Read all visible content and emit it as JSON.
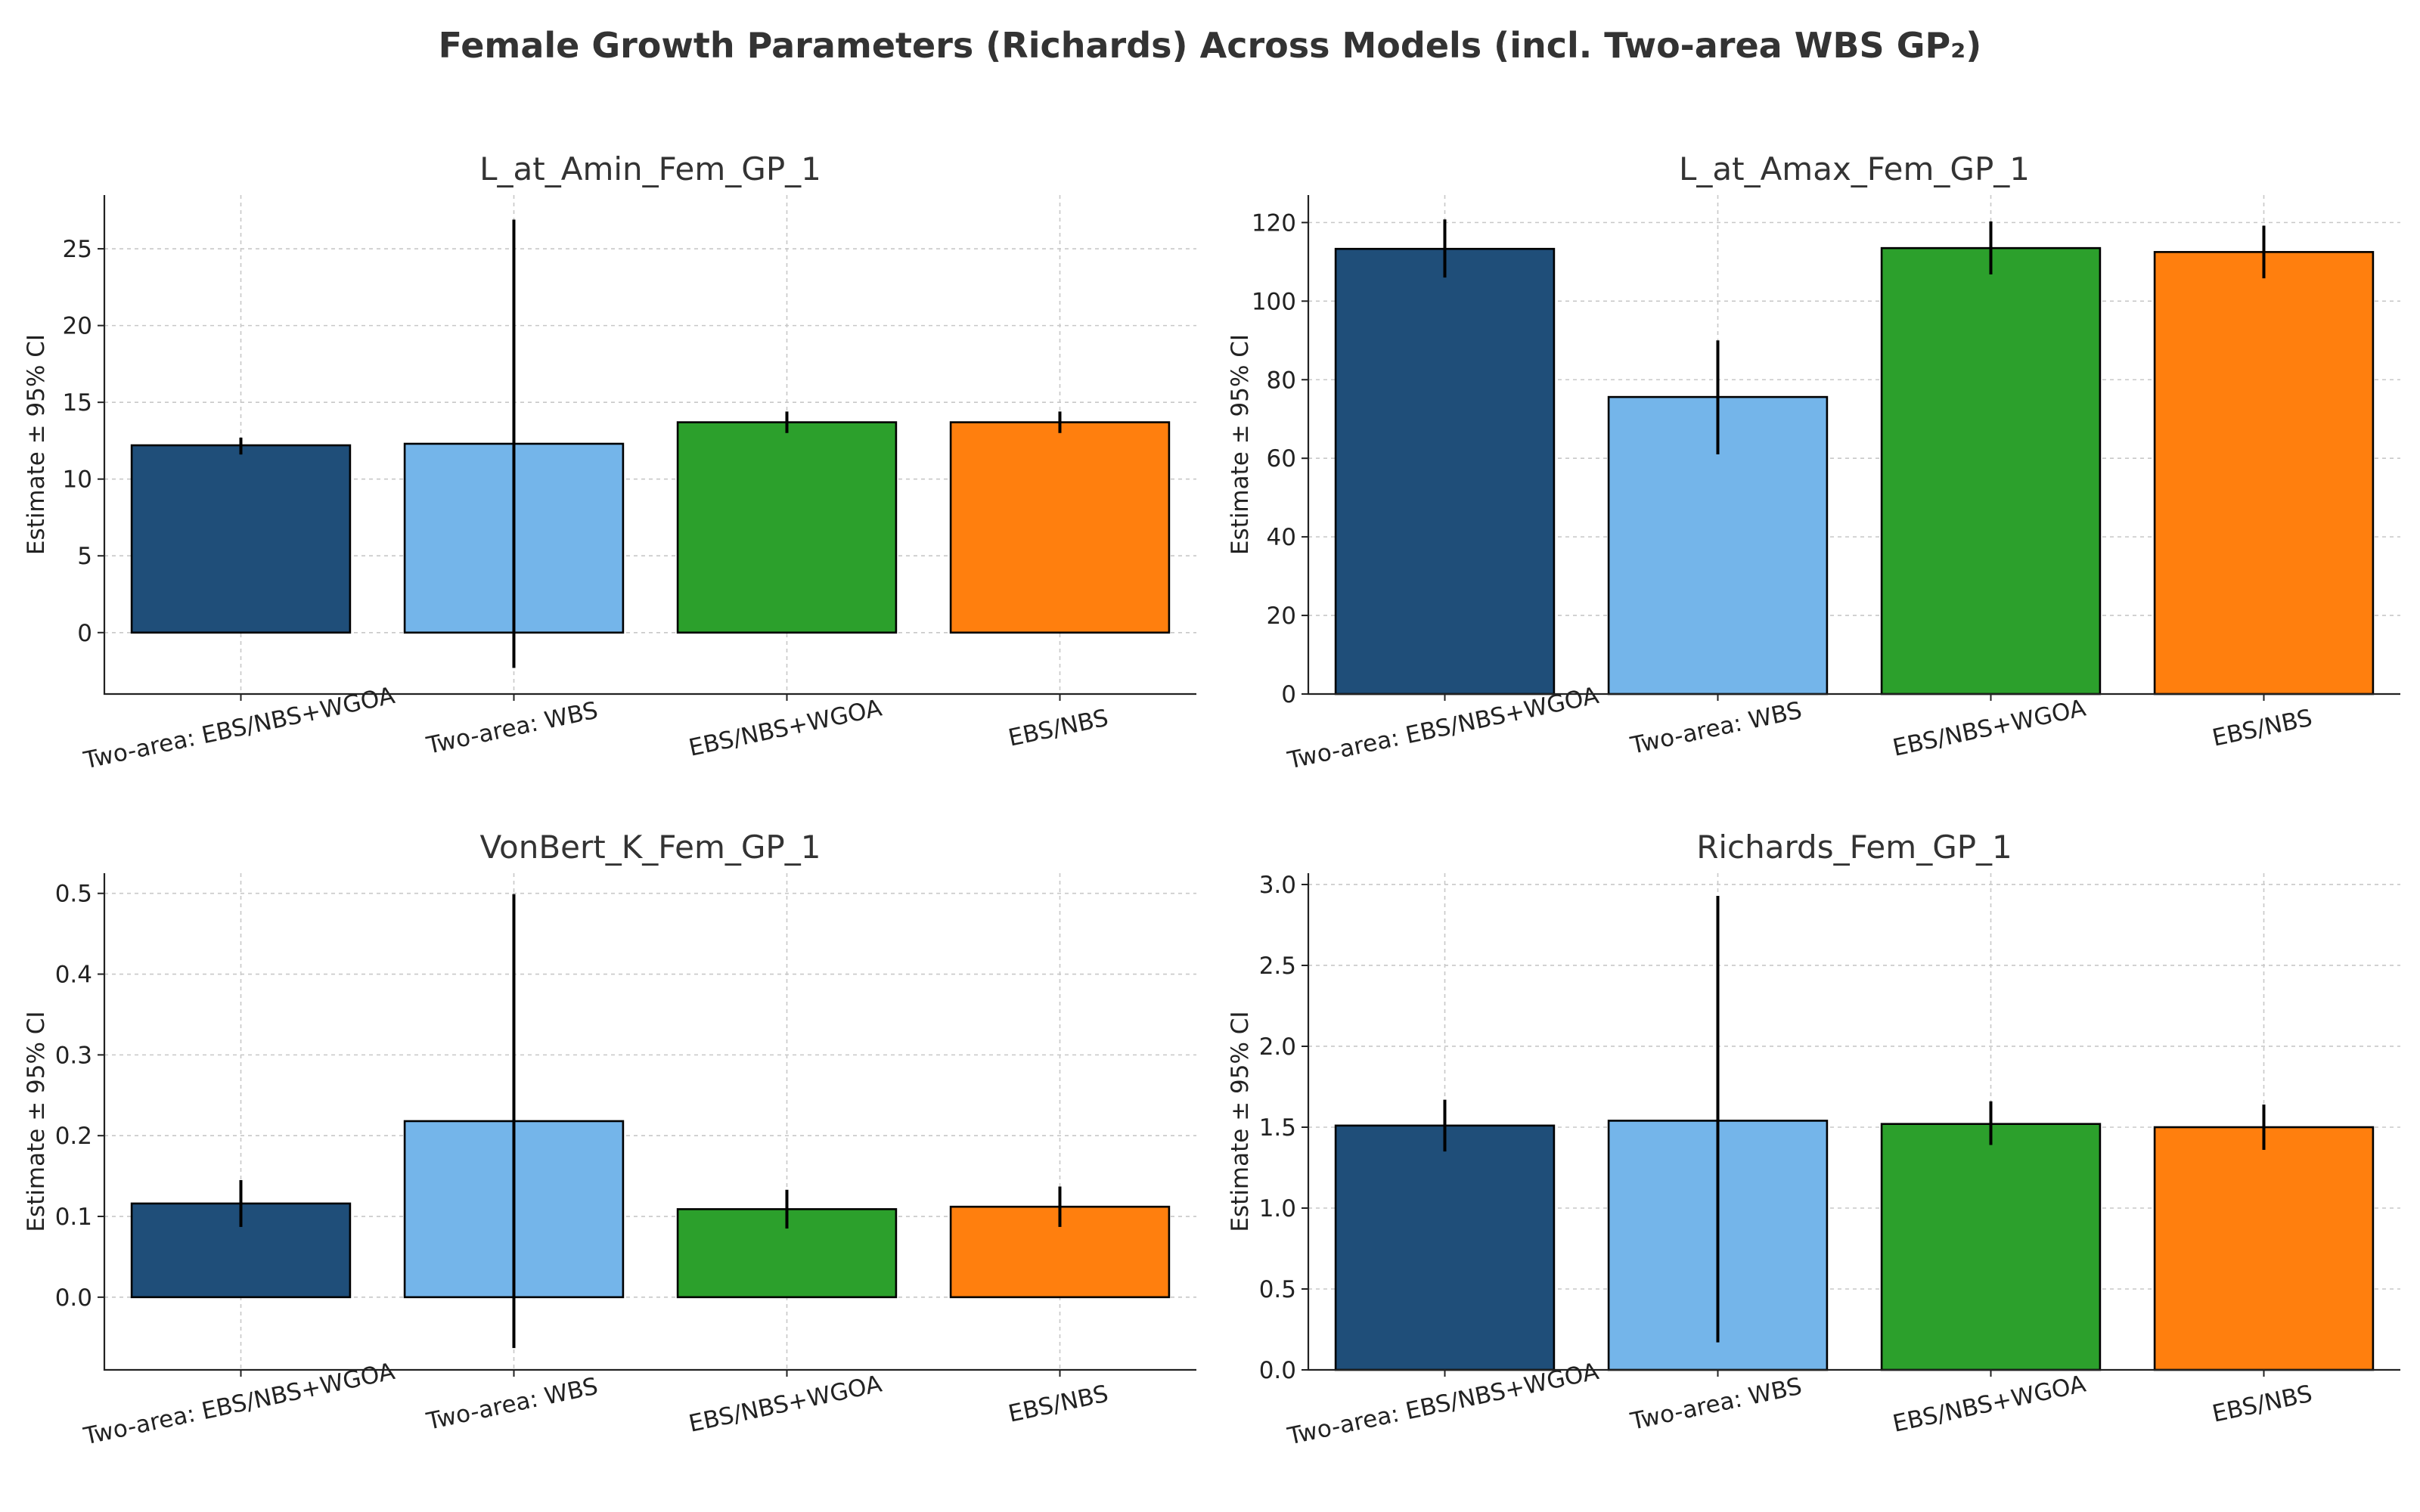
{
  "title": "Female Growth Parameters (Richards) Across Models (incl. Two-area WBS GP₂)",
  "colors": [
    "#1f4e79",
    "#74b5ea",
    "#2ca02c",
    "#ff7f0e"
  ],
  "chart_data": [
    {
      "type": "bar",
      "title": "L_at_Amin_Fem_GP_1",
      "ylabel": "Estimate ± 95% CI",
      "categories": [
        "Two-area: EBS/NBS+WGOA",
        "Two-area: WBS",
        "EBS/NBS+WGOA",
        "EBS/NBS"
      ],
      "values": [
        12.2,
        12.3,
        13.7,
        13.7
      ],
      "ci_low": [
        11.6,
        -2.3,
        13.0,
        13.0
      ],
      "ci_high": [
        12.7,
        26.9,
        14.4,
        14.4
      ],
      "ylim": [
        -4,
        28.5
      ],
      "yticks": [
        0,
        5,
        10,
        15,
        20,
        25
      ],
      "ytick_labels": [
        "0",
        "5",
        "10",
        "15",
        "20",
        "25"
      ],
      "grid": true
    },
    {
      "type": "bar",
      "title": "L_at_Amax_Fem_GP_1",
      "ylabel": "Estimate ± 95% CI",
      "categories": [
        "Two-area: EBS/NBS+WGOA",
        "Two-area: WBS",
        "EBS/NBS+WGOA",
        "EBS/NBS"
      ],
      "values": [
        113.3,
        75.6,
        113.5,
        112.5
      ],
      "ci_low": [
        106.0,
        61.0,
        106.8,
        105.8
      ],
      "ci_high": [
        120.8,
        90.0,
        120.3,
        119.2
      ],
      "ylim": [
        0,
        127
      ],
      "yticks": [
        0,
        20,
        40,
        60,
        80,
        100,
        120
      ],
      "ytick_labels": [
        "0",
        "20",
        "40",
        "60",
        "80",
        "100",
        "120"
      ],
      "grid": true
    },
    {
      "type": "bar",
      "title": "VonBert_K_Fem_GP_1",
      "ylabel": "Estimate ± 95% CI",
      "categories": [
        "Two-area: EBS/NBS+WGOA",
        "Two-area: WBS",
        "EBS/NBS+WGOA",
        "EBS/NBS"
      ],
      "values": [
        0.116,
        0.218,
        0.109,
        0.112
      ],
      "ci_low": [
        0.087,
        -0.063,
        0.085,
        0.087
      ],
      "ci_high": [
        0.145,
        0.499,
        0.133,
        0.137
      ],
      "ylim": [
        -0.09,
        0.525
      ],
      "yticks": [
        0.0,
        0.1,
        0.2,
        0.3,
        0.4,
        0.5
      ],
      "ytick_labels": [
        "0.0",
        "0.1",
        "0.2",
        "0.3",
        "0.4",
        "0.5"
      ],
      "grid": true
    },
    {
      "type": "bar",
      "title": "Richards_Fem_GP_1",
      "ylabel": "Estimate ± 95% CI",
      "categories": [
        "Two-area: EBS/NBS+WGOA",
        "Two-area: WBS",
        "EBS/NBS+WGOA",
        "EBS/NBS"
      ],
      "values": [
        1.51,
        1.54,
        1.52,
        1.5
      ],
      "ci_low": [
        1.35,
        0.17,
        1.39,
        1.36
      ],
      "ci_high": [
        1.67,
        2.93,
        1.66,
        1.64
      ],
      "ylim": [
        0,
        3.07
      ],
      "yticks": [
        0.0,
        0.5,
        1.0,
        1.5,
        2.0,
        2.5,
        3.0
      ],
      "ytick_labels": [
        "0.0",
        "0.5",
        "1.0",
        "1.5",
        "2.0",
        "2.5",
        "3.0"
      ],
      "grid": true
    }
  ]
}
